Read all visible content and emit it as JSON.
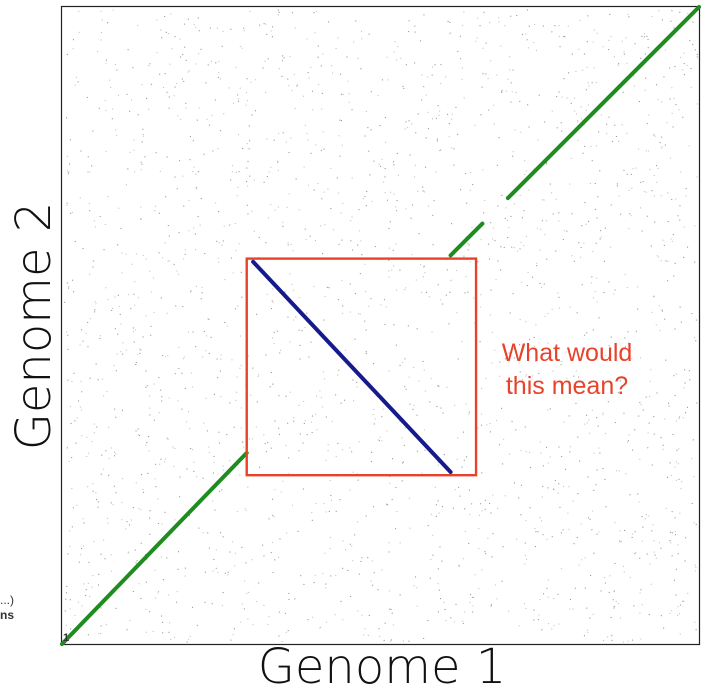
{
  "chart_data": {
    "type": "scatter",
    "subtype": "dot-plot",
    "xlabel": "Genome 1",
    "ylabel": "Genome 2",
    "xlim": [
      0,
      1
    ],
    "ylim": [
      0,
      1
    ],
    "grid": false,
    "corner_label": "1",
    "clipped_left_text": [
      "...)",
      "ns"
    ],
    "background_noise": "sparse grey dots",
    "series": [
      {
        "orientation": "forward",
        "color": "#1e8c1e",
        "segments": [
          [
            [
              0.0,
              0.0
            ],
            [
              0.29,
              0.3
            ]
          ],
          [
            [
              0.61,
              0.61
            ],
            [
              0.66,
              0.66
            ]
          ],
          [
            [
              0.7,
              0.7
            ],
            [
              1.0,
              1.0
            ]
          ]
        ]
      },
      {
        "orientation": "reverse",
        "color": "#151a8c",
        "segments": [
          [
            [
              0.3,
              0.6
            ],
            [
              0.61,
              0.27
            ]
          ]
        ]
      }
    ],
    "highlight_box": {
      "x": [
        0.29,
        0.65
      ],
      "y": [
        0.265,
        0.605
      ],
      "color": "#e8432a"
    },
    "annotation": {
      "lines": [
        "What would",
        "this mean?"
      ],
      "color": "#e8432a"
    }
  }
}
